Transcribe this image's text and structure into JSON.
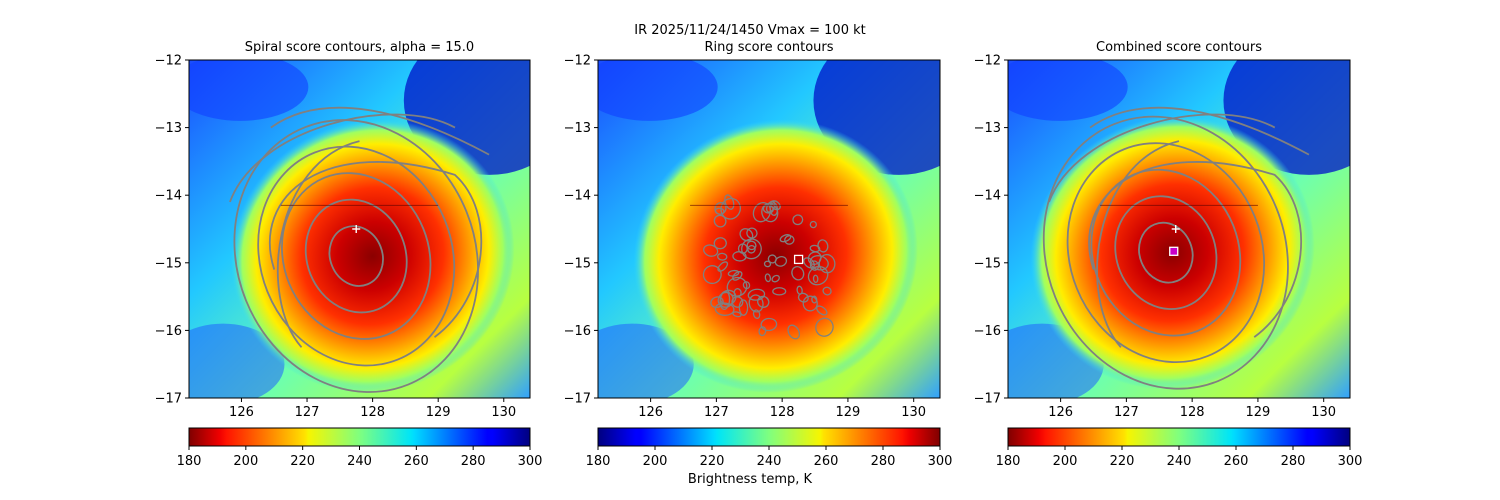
{
  "figure": {
    "suptitle": "IR  2025/11/24/1450    Vmax = 100 kt",
    "colorbar_label": "Brightness temp, K"
  },
  "colors": {
    "contour": "#808080",
    "marker_plus": "#ffffff",
    "marker_square_edge": "#ffffff",
    "marker_center_fill": "#c800c8"
  },
  "chart_data": [
    {
      "type": "heatmap",
      "title": "Spiral score contours, alpha = 15.0",
      "xlim": [
        125.2,
        130.4
      ],
      "ylim": [
        -17,
        -12
      ],
      "xticks": [
        "126",
        "127",
        "128",
        "129",
        "130"
      ],
      "yticks": [
        "−12",
        "−13",
        "−14",
        "−15",
        "−16",
        "−17"
      ],
      "colormap": "jet_r",
      "colorbar_range": [
        180,
        300
      ],
      "colorbar_ticks": [
        "180",
        "200",
        "220",
        "240",
        "260",
        "280",
        "300"
      ],
      "storm_center_lon": 128.0,
      "storm_center_lat": -14.9,
      "markers": [
        {
          "kind": "plus",
          "lon": 127.75,
          "lat": -14.5
        }
      ]
    },
    {
      "type": "heatmap",
      "title": "Ring score contours",
      "xlim": [
        125.2,
        130.4
      ],
      "ylim": [
        -17,
        -12
      ],
      "xticks": [
        "126",
        "127",
        "128",
        "129",
        "130"
      ],
      "yticks": [
        "−12",
        "−13",
        "−14",
        "−15",
        "−16",
        "−17"
      ],
      "colormap": "jet",
      "colorbar_range": [
        180,
        300
      ],
      "colorbar_ticks": [
        "180",
        "200",
        "220",
        "240",
        "260",
        "280",
        "300"
      ],
      "storm_center_lon": 127.9,
      "storm_center_lat": -14.9,
      "markers": [
        {
          "kind": "square",
          "lon": 128.25,
          "lat": -14.95
        }
      ]
    },
    {
      "type": "heatmap",
      "title": "Combined score contours",
      "xlim": [
        125.2,
        130.4
      ],
      "ylim": [
        -17,
        -12
      ],
      "xticks": [
        "126",
        "127",
        "128",
        "129",
        "130"
      ],
      "yticks": [
        "−12",
        "−13",
        "−14",
        "−15",
        "−16",
        "−17"
      ],
      "colormap": "jet_r",
      "colorbar_range": [
        180,
        300
      ],
      "colorbar_ticks": [
        "180",
        "200",
        "220",
        "240",
        "260",
        "280",
        "300"
      ],
      "storm_center_lon": 127.7,
      "storm_center_lat": -14.85,
      "markers": [
        {
          "kind": "plus",
          "lon": 127.75,
          "lat": -14.5
        },
        {
          "kind": "square",
          "lon": 127.72,
          "lat": -14.83
        }
      ]
    }
  ]
}
